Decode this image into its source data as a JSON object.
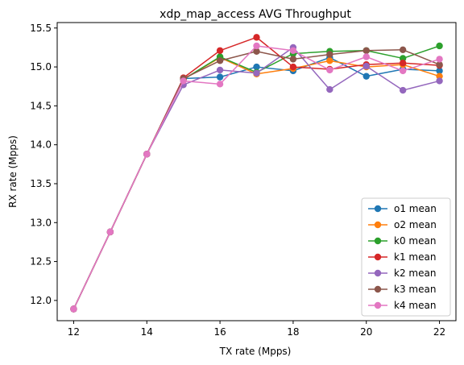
{
  "chart_data": {
    "type": "line",
    "title": "xdp_map_access AVG Throughput",
    "xlabel": "TX rate (Mpps)",
    "ylabel": "RX rate (Mpps)",
    "xlim": [
      11.55,
      22.45
    ],
    "ylim": [
      11.74,
      15.57
    ],
    "xticks": [
      12,
      14,
      16,
      18,
      20,
      22
    ],
    "yticks": [
      12.0,
      12.5,
      13.0,
      13.5,
      14.0,
      14.5,
      15.0,
      15.5
    ],
    "x": [
      12,
      13,
      14,
      15,
      16,
      17,
      18,
      19,
      20,
      21,
      22
    ],
    "legend_position": "lower right",
    "grid": false,
    "series": [
      {
        "name": "o1 mean",
        "color": "#1f77b4",
        "values": [
          11.89,
          12.88,
          13.88,
          14.85,
          14.87,
          15.0,
          14.95,
          15.12,
          14.88,
          14.97,
          14.95
        ]
      },
      {
        "name": "o2 mean",
        "color": "#ff7f0e",
        "values": [
          11.89,
          12.88,
          13.88,
          14.84,
          15.12,
          14.91,
          14.98,
          15.08,
          15.0,
          15.03,
          14.88
        ]
      },
      {
        "name": "k0 mean",
        "color": "#2ca02c",
        "values": [
          11.89,
          12.88,
          13.88,
          14.84,
          15.13,
          14.93,
          15.17,
          15.2,
          15.21,
          15.11,
          15.27
        ]
      },
      {
        "name": "k1 mean",
        "color": "#d62728",
        "values": [
          11.89,
          12.88,
          13.88,
          14.86,
          15.21,
          15.38,
          15.0,
          14.97,
          15.03,
          15.05,
          15.02
        ]
      },
      {
        "name": "k2 mean",
        "color": "#9467bd",
        "values": [
          11.89,
          12.88,
          13.88,
          14.77,
          14.96,
          14.92,
          15.25,
          14.71,
          15.01,
          14.7,
          14.82
        ]
      },
      {
        "name": "k3 mean",
        "color": "#8c564b",
        "values": [
          11.89,
          12.88,
          13.88,
          14.85,
          15.08,
          15.2,
          15.1,
          15.16,
          15.21,
          15.22,
          15.03
        ]
      },
      {
        "name": "k4 mean",
        "color": "#e377c2",
        "values": [
          11.89,
          12.88,
          13.88,
          14.82,
          14.78,
          15.27,
          15.21,
          14.96,
          15.13,
          14.95,
          15.1
        ]
      }
    ]
  }
}
